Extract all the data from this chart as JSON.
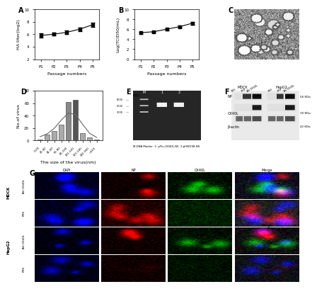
{
  "panel_A": {
    "x": [
      1,
      2,
      3,
      4,
      5
    ],
    "y": [
      5.8,
      6.0,
      6.3,
      6.8,
      7.5
    ],
    "yerr": [
      0.3,
      0.25,
      0.3,
      0.3,
      0.35
    ],
    "xlabel": "Passage numbers",
    "ylabel": "HA titer(log2)",
    "xticks": [
      "P1",
      "P2",
      "P3",
      "P4",
      "P5"
    ],
    "ylim": [
      2,
      10
    ],
    "yticks": [
      2,
      4,
      6,
      8,
      10
    ],
    "label": "A"
  },
  "panel_B": {
    "x": [
      1,
      2,
      3,
      4,
      5
    ],
    "y": [
      5.3,
      5.5,
      6.0,
      6.5,
      7.2
    ],
    "yerr": [
      0.2,
      0.15,
      0.2,
      0.25,
      0.25
    ],
    "xlabel": "Passage numbers",
    "ylabel": "Log(TCID50/mL)",
    "xticks": [
      "P1",
      "P2",
      "P3",
      "P4",
      "P5"
    ],
    "ylim": [
      0,
      10
    ],
    "yticks": [
      0,
      2,
      4,
      6,
      8,
      10
    ],
    "label": "B"
  },
  "panel_D": {
    "bins": [
      "0-20",
      "21-40",
      "41-60",
      "61-80",
      "81-100",
      "101-120",
      "121-140",
      "141-160",
      ">160"
    ],
    "values": [
      2,
      10,
      15,
      25,
      62,
      65,
      12,
      5,
      2
    ],
    "xlabel": "The size of the virus(nm)",
    "ylabel": "No.of virus",
    "yticks": [
      0,
      20,
      40,
      60,
      80
    ],
    "label": "D",
    "bar_colors": [
      "#aaaaaa",
      "#aaaaaa",
      "#aaaaaa",
      "#aaaaaa",
      "#888888",
      "#555555",
      "#aaaaaa",
      "#aaaaaa",
      "#aaaaaa"
    ]
  },
  "bg_color": "#ffffff",
  "line_color": "#000000",
  "marker": "s"
}
